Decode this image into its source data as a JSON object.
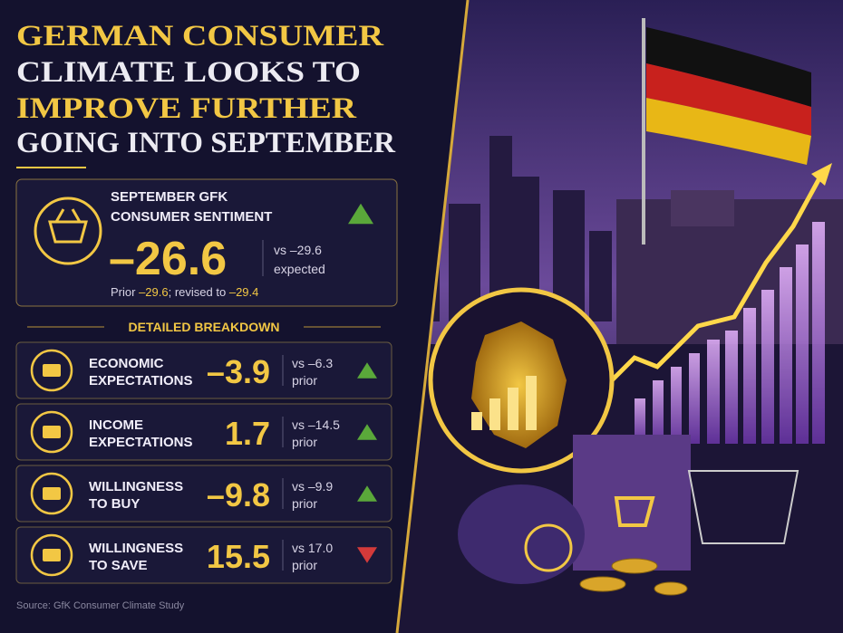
{
  "header": {
    "title_lines": [
      "GERMAN CONSUMER",
      "CLIMATE LOOKS TO",
      "IMPROVE FURTHER",
      "GOING INTO SEPTEMBER"
    ]
  },
  "headline": {
    "label_lines": [
      "SEPTEMBER GFK",
      "CONSUMER SENTIMENT"
    ],
    "value": "–26.6",
    "direction": "up",
    "comparison_lines": [
      "vs –29.6",
      "expected"
    ],
    "prior_label": "Prior",
    "prior": "–29.6",
    "revised_label": "; revised to",
    "revised": "–29.4"
  },
  "breakdown": {
    "title": "DETAILED BREAKDOWN",
    "items": [
      {
        "label_lines": [
          "ECONOMIC",
          "EXPECTATIONS"
        ],
        "value": "–3.9",
        "comparison_lines": [
          "vs –6.3",
          "prior"
        ],
        "direction": "up"
      },
      {
        "label_lines": [
          "INCOME",
          "EXPECTATIONS"
        ],
        "value": "1.7",
        "comparison_lines": [
          "vs –14.5",
          "prior"
        ],
        "direction": "up"
      },
      {
        "label_lines": [
          "WILLINGNESS",
          "TO BUY"
        ],
        "value": "–9.8",
        "comparison_lines": [
          "vs –9.9",
          "prior"
        ],
        "direction": "up"
      },
      {
        "label_lines": [
          "WILLINGNESS",
          "TO SAVE"
        ],
        "value": "15.5",
        "comparison_lines": [
          "vs 17.0",
          "prior"
        ],
        "direction": "down"
      }
    ]
  },
  "footer": {
    "source": "Source: GfK Consumer Climate Study"
  }
}
